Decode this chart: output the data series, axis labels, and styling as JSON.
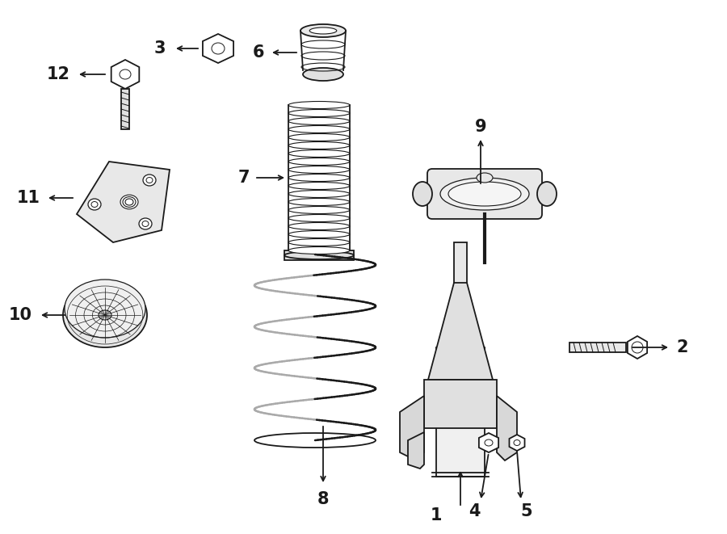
{
  "bg_color": "#ffffff",
  "line_color": "#1a1a1a",
  "figsize": [
    9.0,
    6.61
  ],
  "dpi": 100,
  "lw": 1.3
}
